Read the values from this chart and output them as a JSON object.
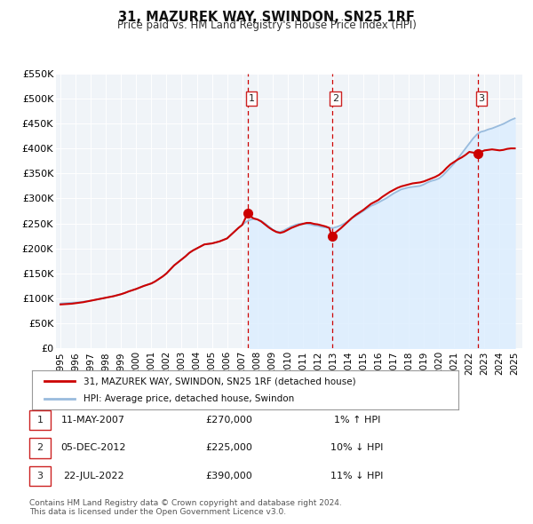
{
  "title": "31, MAZUREK WAY, SWINDON, SN25 1RF",
  "subtitle": "Price paid vs. HM Land Registry's House Price Index (HPI)",
  "legend_line1": "31, MAZUREK WAY, SWINDON, SN25 1RF (detached house)",
  "legend_line2": "HPI: Average price, detached house, Swindon",
  "footnote1": "Contains HM Land Registry data © Crown copyright and database right 2024.",
  "footnote2": "This data is licensed under the Open Government Licence v3.0.",
  "ylim": [
    0,
    550000
  ],
  "yticks": [
    0,
    50000,
    100000,
    150000,
    200000,
    250000,
    300000,
    350000,
    400000,
    450000,
    500000,
    550000
  ],
  "ytick_labels": [
    "£0",
    "£50K",
    "£100K",
    "£150K",
    "£200K",
    "£250K",
    "£300K",
    "£350K",
    "£400K",
    "£450K",
    "£500K",
    "£550K"
  ],
  "xlim_start": 1994.7,
  "xlim_end": 2025.5,
  "xticks": [
    1995,
    1996,
    1997,
    1998,
    1999,
    2000,
    2001,
    2002,
    2003,
    2004,
    2005,
    2006,
    2007,
    2008,
    2009,
    2010,
    2011,
    2012,
    2013,
    2014,
    2015,
    2016,
    2017,
    2018,
    2019,
    2020,
    2021,
    2022,
    2023,
    2024,
    2025
  ],
  "sale_color": "#cc0000",
  "hpi_color": "#99bbdd",
  "hpi_fill_color": "#ddeeff",
  "vline_color": "#cc0000",
  "transactions": [
    {
      "num": 1,
      "date_f": 2007.36,
      "price": 270000,
      "label": "1",
      "date_str": "11-MAY-2007",
      "price_str": "£270,000",
      "hpi_pct": "1% ↑ HPI"
    },
    {
      "num": 2,
      "date_f": 2012.92,
      "price": 225000,
      "label": "2",
      "date_str": "05-DEC-2012",
      "price_str": "£225,000",
      "hpi_pct": "10% ↓ HPI"
    },
    {
      "num": 3,
      "date_f": 2022.55,
      "price": 390000,
      "label": "3",
      "date_str": "22-JUL-2022",
      "price_str": "£390,000",
      "hpi_pct": "11% ↓ HPI"
    }
  ],
  "hpi_data": [
    [
      1995.0,
      90000
    ],
    [
      1995.25,
      90500
    ],
    [
      1995.5,
      91000
    ],
    [
      1995.75,
      91500
    ],
    [
      1996.0,
      92000
    ],
    [
      1996.25,
      92500
    ],
    [
      1996.5,
      93500
    ],
    [
      1996.75,
      94500
    ],
    [
      1997.0,
      95500
    ],
    [
      1997.25,
      97000
    ],
    [
      1997.5,
      98500
    ],
    [
      1997.75,
      100000
    ],
    [
      1998.0,
      101500
    ],
    [
      1998.25,
      103000
    ],
    [
      1998.5,
      104500
    ],
    [
      1998.75,
      106500
    ],
    [
      1999.0,
      108500
    ],
    [
      1999.25,
      111000
    ],
    [
      1999.5,
      114000
    ],
    [
      1999.75,
      116500
    ],
    [
      2000.0,
      119000
    ],
    [
      2000.25,
      122000
    ],
    [
      2000.5,
      125000
    ],
    [
      2000.75,
      127500
    ],
    [
      2001.0,
      130000
    ],
    [
      2001.25,
      134000
    ],
    [
      2001.5,
      139000
    ],
    [
      2001.75,
      144000
    ],
    [
      2002.0,
      150000
    ],
    [
      2002.25,
      158000
    ],
    [
      2002.5,
      166000
    ],
    [
      2002.75,
      172000
    ],
    [
      2003.0,
      178000
    ],
    [
      2003.25,
      184000
    ],
    [
      2003.5,
      191000
    ],
    [
      2003.75,
      196000
    ],
    [
      2004.0,
      200000
    ],
    [
      2004.25,
      204000
    ],
    [
      2004.5,
      208000
    ],
    [
      2004.75,
      209000
    ],
    [
      2005.0,
      210000
    ],
    [
      2005.25,
      212000
    ],
    [
      2005.5,
      214000
    ],
    [
      2005.75,
      217000
    ],
    [
      2006.0,
      220000
    ],
    [
      2006.25,
      227000
    ],
    [
      2006.5,
      234000
    ],
    [
      2006.75,
      241000
    ],
    [
      2007.0,
      247000
    ],
    [
      2007.25,
      253000
    ],
    [
      2007.5,
      257000
    ],
    [
      2007.75,
      259000
    ],
    [
      2008.0,
      258000
    ],
    [
      2008.25,
      255000
    ],
    [
      2008.5,
      250000
    ],
    [
      2008.75,
      244000
    ],
    [
      2009.0,
      238000
    ],
    [
      2009.25,
      234000
    ],
    [
      2009.5,
      233000
    ],
    [
      2009.75,
      236000
    ],
    [
      2010.0,
      240000
    ],
    [
      2010.25,
      244000
    ],
    [
      2010.5,
      247000
    ],
    [
      2010.75,
      249000
    ],
    [
      2011.0,
      250000
    ],
    [
      2011.25,
      249000
    ],
    [
      2011.5,
      248000
    ],
    [
      2011.75,
      246000
    ],
    [
      2012.0,
      245000
    ],
    [
      2012.25,
      243000
    ],
    [
      2012.5,
      242000
    ],
    [
      2012.75,
      241000
    ],
    [
      2013.0,
      241000
    ],
    [
      2013.25,
      243000
    ],
    [
      2013.5,
      246000
    ],
    [
      2013.75,
      250000
    ],
    [
      2014.0,
      255000
    ],
    [
      2014.25,
      261000
    ],
    [
      2014.5,
      265000
    ],
    [
      2014.75,
      270000
    ],
    [
      2015.0,
      275000
    ],
    [
      2015.25,
      280000
    ],
    [
      2015.5,
      285000
    ],
    [
      2015.75,
      288000
    ],
    [
      2016.0,
      292000
    ],
    [
      2016.25,
      296000
    ],
    [
      2016.5,
      300000
    ],
    [
      2016.75,
      305000
    ],
    [
      2017.0,
      310000
    ],
    [
      2017.25,
      314000
    ],
    [
      2017.5,
      318000
    ],
    [
      2017.75,
      320000
    ],
    [
      2018.0,
      322000
    ],
    [
      2018.25,
      323000
    ],
    [
      2018.5,
      324000
    ],
    [
      2018.75,
      325000
    ],
    [
      2019.0,
      328000
    ],
    [
      2019.25,
      332000
    ],
    [
      2019.5,
      335000
    ],
    [
      2019.75,
      337000
    ],
    [
      2020.0,
      340000
    ],
    [
      2020.25,
      346000
    ],
    [
      2020.5,
      354000
    ],
    [
      2020.75,
      362000
    ],
    [
      2021.0,
      370000
    ],
    [
      2021.25,
      380000
    ],
    [
      2021.5,
      390000
    ],
    [
      2021.75,
      400000
    ],
    [
      2022.0,
      410000
    ],
    [
      2022.25,
      420000
    ],
    [
      2022.5,
      428000
    ],
    [
      2022.75,
      433000
    ],
    [
      2023.0,
      435000
    ],
    [
      2023.25,
      438000
    ],
    [
      2023.5,
      440000
    ],
    [
      2023.75,
      443000
    ],
    [
      2024.0,
      446000
    ],
    [
      2024.25,
      449000
    ],
    [
      2024.5,
      453000
    ],
    [
      2024.75,
      457000
    ],
    [
      2025.0,
      460000
    ]
  ],
  "price_data": [
    [
      1995.0,
      88000
    ],
    [
      1995.25,
      88500
    ],
    [
      1995.5,
      89000
    ],
    [
      1995.75,
      89500
    ],
    [
      1996.0,
      90500
    ],
    [
      1996.25,
      91500
    ],
    [
      1996.5,
      92500
    ],
    [
      1996.75,
      94000
    ],
    [
      1997.0,
      95500
    ],
    [
      1997.25,
      97000
    ],
    [
      1997.5,
      98500
    ],
    [
      1997.75,
      100000
    ],
    [
      1998.0,
      101500
    ],
    [
      1998.25,
      103000
    ],
    [
      1998.5,
      104500
    ],
    [
      1998.75,
      106500
    ],
    [
      1999.0,
      108500
    ],
    [
      1999.25,
      111000
    ],
    [
      1999.5,
      114000
    ],
    [
      1999.75,
      116500
    ],
    [
      2000.0,
      119000
    ],
    [
      2000.25,
      122000
    ],
    [
      2000.5,
      125000
    ],
    [
      2000.75,
      127500
    ],
    [
      2001.0,
      130000
    ],
    [
      2001.25,
      134000
    ],
    [
      2001.5,
      139000
    ],
    [
      2001.75,
      144000
    ],
    [
      2002.0,
      150000
    ],
    [
      2002.25,
      158000
    ],
    [
      2002.5,
      166000
    ],
    [
      2002.75,
      172000
    ],
    [
      2003.0,
      178000
    ],
    [
      2003.25,
      184000
    ],
    [
      2003.5,
      191000
    ],
    [
      2003.75,
      196000
    ],
    [
      2004.0,
      200000
    ],
    [
      2004.25,
      204000
    ],
    [
      2004.5,
      208000
    ],
    [
      2004.75,
      209000
    ],
    [
      2005.0,
      210000
    ],
    [
      2005.25,
      212000
    ],
    [
      2005.5,
      214000
    ],
    [
      2005.75,
      217000
    ],
    [
      2006.0,
      220000
    ],
    [
      2006.25,
      227000
    ],
    [
      2006.5,
      234000
    ],
    [
      2006.75,
      241000
    ],
    [
      2007.0,
      247000
    ],
    [
      2007.36,
      270000
    ],
    [
      2007.5,
      265000
    ],
    [
      2007.75,
      260000
    ],
    [
      2008.0,
      258000
    ],
    [
      2008.25,
      254000
    ],
    [
      2008.5,
      248000
    ],
    [
      2008.75,
      242000
    ],
    [
      2009.0,
      237000
    ],
    [
      2009.25,
      233000
    ],
    [
      2009.5,
      231000
    ],
    [
      2009.75,
      233000
    ],
    [
      2010.0,
      237000
    ],
    [
      2010.25,
      241000
    ],
    [
      2010.5,
      244000
    ],
    [
      2010.75,
      247000
    ],
    [
      2011.0,
      249000
    ],
    [
      2011.25,
      251000
    ],
    [
      2011.5,
      251000
    ],
    [
      2011.75,
      249000
    ],
    [
      2012.0,
      248000
    ],
    [
      2012.25,
      246000
    ],
    [
      2012.5,
      244000
    ],
    [
      2012.75,
      241000
    ],
    [
      2012.92,
      225000
    ],
    [
      2013.0,
      228000
    ],
    [
      2013.25,
      234000
    ],
    [
      2013.5,
      240000
    ],
    [
      2013.75,
      247000
    ],
    [
      2014.0,
      254000
    ],
    [
      2014.25,
      261000
    ],
    [
      2014.5,
      267000
    ],
    [
      2014.75,
      272000
    ],
    [
      2015.0,
      277000
    ],
    [
      2015.25,
      283000
    ],
    [
      2015.5,
      289000
    ],
    [
      2015.75,
      293000
    ],
    [
      2016.0,
      297000
    ],
    [
      2016.25,
      303000
    ],
    [
      2016.5,
      308000
    ],
    [
      2016.75,
      313000
    ],
    [
      2017.0,
      317000
    ],
    [
      2017.25,
      321000
    ],
    [
      2017.5,
      324000
    ],
    [
      2017.75,
      326000
    ],
    [
      2018.0,
      328000
    ],
    [
      2018.25,
      330000
    ],
    [
      2018.5,
      331000
    ],
    [
      2018.75,
      332000
    ],
    [
      2019.0,
      334000
    ],
    [
      2019.25,
      337000
    ],
    [
      2019.5,
      340000
    ],
    [
      2019.75,
      343000
    ],
    [
      2020.0,
      347000
    ],
    [
      2020.25,
      353000
    ],
    [
      2020.5,
      361000
    ],
    [
      2020.75,
      368000
    ],
    [
      2021.0,
      373000
    ],
    [
      2021.25,
      378000
    ],
    [
      2021.5,
      382000
    ],
    [
      2021.75,
      387000
    ],
    [
      2022.0,
      393000
    ],
    [
      2022.55,
      390000
    ],
    [
      2022.75,
      393000
    ],
    [
      2023.0,
      396000
    ],
    [
      2023.25,
      397000
    ],
    [
      2023.5,
      398000
    ],
    [
      2023.75,
      397000
    ],
    [
      2024.0,
      396000
    ],
    [
      2024.25,
      397000
    ],
    [
      2024.5,
      399000
    ],
    [
      2024.75,
      400000
    ],
    [
      2025.0,
      400000
    ]
  ]
}
